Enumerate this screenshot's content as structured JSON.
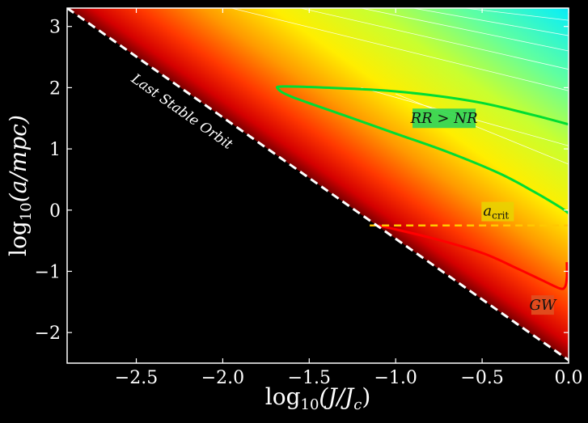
{
  "chart_data": {
    "type": "heatmap",
    "xlabel": "log10(J/Jc)",
    "xlabel_parts": {
      "pre": "log",
      "sub": "10",
      "post": "(J/J",
      "sub2": "c",
      "end": ")"
    },
    "ylabel": "log10(a/mpc)",
    "ylabel_parts": {
      "pre": "log",
      "sub": "10",
      "post": "(a/mpc)"
    },
    "xlim": [
      -2.9,
      0.0
    ],
    "ylim": [
      -2.5,
      3.3
    ],
    "x_ticks": [
      -2.5,
      -2.0,
      -1.5,
      -1.0,
      -0.5,
      0.0
    ],
    "x_tick_labels": [
      "−2.5",
      "−2.0",
      "−1.5",
      "−1.0",
      "−0.5",
      "0.0"
    ],
    "y_ticks": [
      -2,
      -1,
      0,
      1,
      2,
      3
    ],
    "y_tick_labels": [
      "−2",
      "−1",
      "0",
      "1",
      "2",
      "3"
    ],
    "colormap": "jet",
    "background_color": "#000000",
    "last_stable_orbit": {
      "label": "Last Stable Orbit",
      "points": [
        [
          -2.9,
          3.3
        ],
        [
          0.0,
          -2.45
        ]
      ],
      "style": "dashed",
      "color": "#ffffff"
    },
    "a_crit": {
      "label": "a",
      "label_sub": "crit",
      "y": -0.25,
      "x_range": [
        -1.15,
        0.0
      ],
      "style": "dashed",
      "color": "#ffc800"
    },
    "regions": [
      {
        "label": "RR > NR",
        "x": -0.72,
        "y": 1.5,
        "box_color": "#2ed45a",
        "boundary_color": "#00dd33",
        "boundary": [
          [
            0.0,
            1.4
          ],
          [
            -0.2,
            1.55
          ],
          [
            -0.5,
            1.75
          ],
          [
            -0.8,
            1.88
          ],
          [
            -1.1,
            1.96
          ],
          [
            -1.4,
            2.0
          ],
          [
            -1.65,
            2.02
          ],
          [
            -1.68,
            1.98
          ],
          [
            -1.6,
            1.85
          ],
          [
            -1.3,
            1.55
          ],
          [
            -1.0,
            1.25
          ],
          [
            -0.7,
            0.95
          ],
          [
            -0.4,
            0.6
          ],
          [
            -0.2,
            0.3
          ],
          [
            -0.05,
            0.05
          ],
          [
            0.0,
            -0.05
          ]
        ]
      },
      {
        "label": "GW",
        "x": -0.15,
        "y": -1.55,
        "box_color": "#e05020",
        "boundary_color": "#ff0000",
        "boundary": [
          [
            -1.1,
            -0.25
          ],
          [
            -0.8,
            -0.45
          ],
          [
            -0.5,
            -0.7
          ],
          [
            -0.3,
            -0.95
          ],
          [
            -0.15,
            -1.15
          ],
          [
            -0.05,
            -1.28
          ],
          [
            -0.02,
            -1.25
          ],
          [
            -0.01,
            -1.1
          ],
          [
            -0.01,
            -0.85
          ]
        ]
      }
    ],
    "contours_white": [
      [
        [
          -1.95,
          3.3
        ],
        [
          0.0,
          1.95
        ]
      ],
      [
        [
          -1.55,
          3.3
        ],
        [
          0.0,
          2.3
        ]
      ],
      [
        [
          -1.2,
          3.3
        ],
        [
          0.0,
          2.6
        ]
      ],
      [
        [
          -0.9,
          3.3
        ],
        [
          0.0,
          2.85
        ]
      ],
      [
        [
          -0.6,
          3.3
        ],
        [
          0.0,
          3.1
        ]
      ],
      [
        [
          -1.2,
          2.0
        ],
        [
          0.0,
          1.05
        ]
      ],
      [
        [
          -1.0,
          1.9
        ],
        [
          0.0,
          0.75
        ]
      ]
    ]
  }
}
